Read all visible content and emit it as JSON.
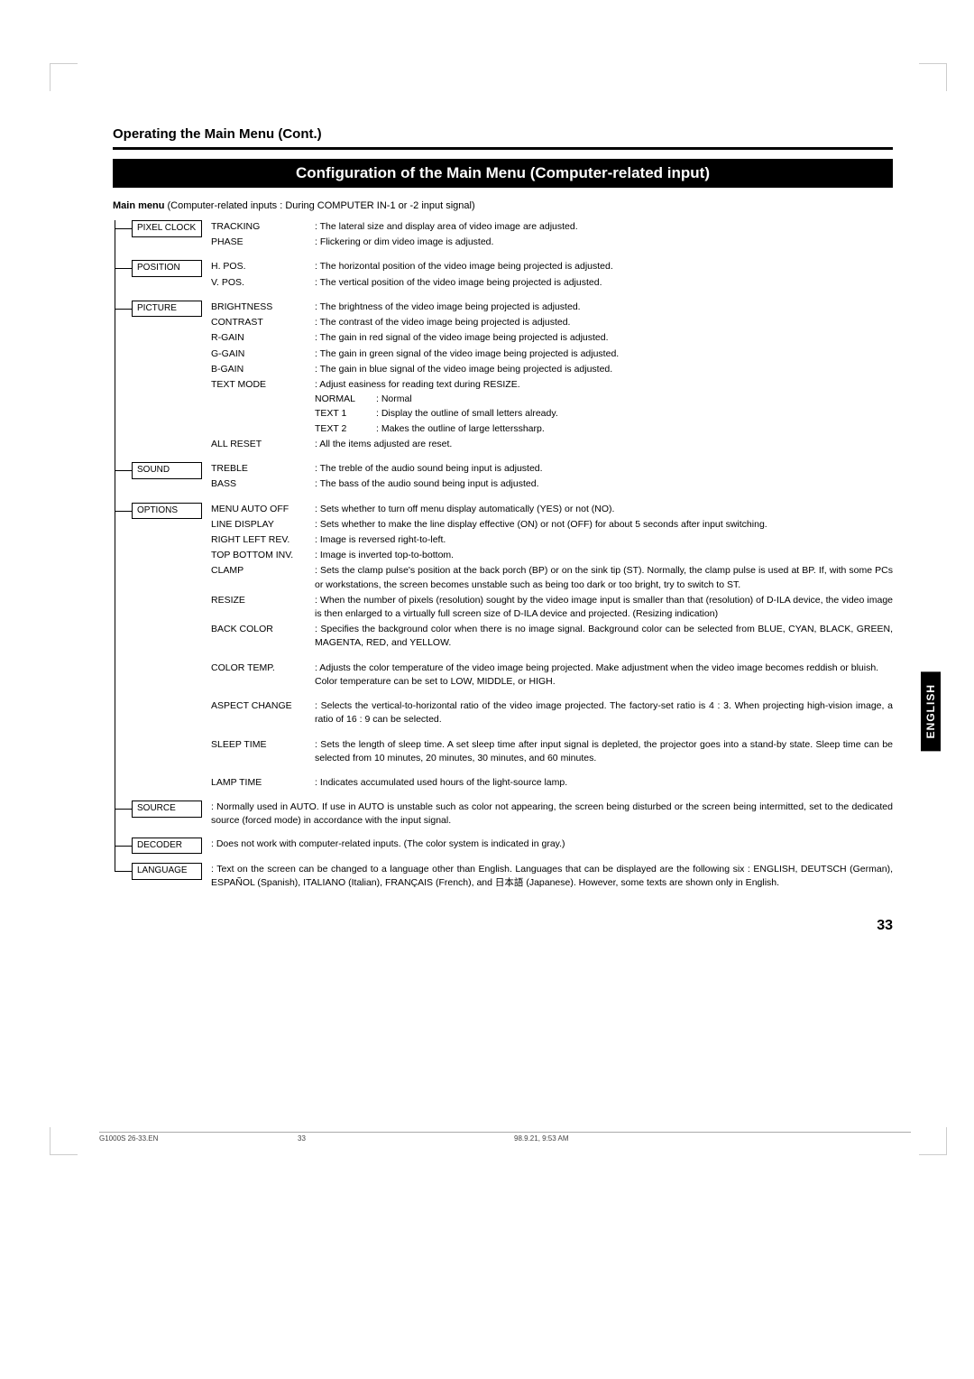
{
  "section_title": "Operating the Main Menu (Cont.)",
  "banner": "Configuration of the Main Menu (Computer-related input)",
  "intro_bold": "Main menu",
  "intro_rest": " (Computer-related inputs : During COMPUTER IN-1 or -2 input signal)",
  "side_tab": "ENGLISH",
  "page_number": "33",
  "footer": {
    "a": "G1000S 26-33.EN",
    "b": "33",
    "c": "98.9.21, 9:53 AM"
  },
  "nodes": [
    {
      "cat": "PIXEL CLOCK",
      "rows": [
        {
          "param": "TRACKING",
          "desc": ": The lateral size and display area of video image are adjusted."
        },
        {
          "param": "PHASE",
          "desc": ": Flickering or dim video image is adjusted."
        }
      ]
    },
    {
      "cat": "POSITION",
      "rows": [
        {
          "param": "H. POS.",
          "desc": ": The horizontal position of the video image being projected is adjusted."
        },
        {
          "param": "V. POS.",
          "desc": ": The vertical position of the video image being projected is adjusted."
        }
      ]
    },
    {
      "cat": "PICTURE",
      "rows": [
        {
          "param": "BRIGHTNESS",
          "desc": ": The brightness of the video image being projected is adjusted."
        },
        {
          "param": "CONTRAST",
          "desc": ": The contrast of the video image being projected is adjusted."
        },
        {
          "param": "R-GAIN",
          "desc": ": The gain in red signal of the video image being projected is adjusted."
        },
        {
          "param": "G-GAIN",
          "desc": ": The gain in green signal of the video image being projected is adjusted."
        },
        {
          "param": "B-GAIN",
          "desc": ": The gain in blue signal of the video image being projected is adjusted."
        },
        {
          "param": "TEXT MODE",
          "desc": ": Adjust easiness for reading text during RESIZE.",
          "subs": [
            {
              "k": "NORMAL",
              "v": ": Normal"
            },
            {
              "k": "TEXT 1",
              "v": ": Display the outline of small letters already."
            },
            {
              "k": "TEXT 2",
              "v": ": Makes the outline of large letterssharp."
            }
          ]
        },
        {
          "param": "ALL RESET",
          "desc": ": All the items adjusted are reset."
        }
      ]
    },
    {
      "cat": "SOUND",
      "rows": [
        {
          "param": "TREBLE",
          "desc": ": The treble of the audio sound being input is adjusted."
        },
        {
          "param": "BASS",
          "desc": ": The bass of the audio sound being input is adjusted."
        }
      ]
    },
    {
      "cat": "OPTIONS",
      "rows": [
        {
          "param": "MENU AUTO OFF",
          "desc": ": Sets whether to turn off menu display automatically (YES) or not (NO)."
        },
        {
          "param": "LINE DISPLAY",
          "desc": ": Sets whether to make the line display effective (ON) or not (OFF) for about 5 seconds after input switching."
        },
        {
          "param": "RIGHT LEFT REV.",
          "desc": ": Image is reversed right-to-left."
        },
        {
          "param": "TOP BOTTOM INV.",
          "desc": ": Image is inverted top-to-bottom."
        },
        {
          "param": "CLAMP",
          "desc": ": Sets the clamp pulse's position at the back porch (BP) or on the sink tip (ST). Normally, the clamp pulse is used at BP. If, with some PCs or workstations, the screen becomes unstable such as being too dark or too bright, try to switch to ST."
        },
        {
          "param": "RESIZE",
          "desc": ": When the number of pixels (resolution) sought by the video image input is smaller than that (resolution) of D-ILA device, the video image is then enlarged to a virtually full screen size of D-ILA device and projected. (Resizing indication)"
        },
        {
          "param": "BACK COLOR",
          "desc": ": Specifies the background color when there is no image signal. Background color can be selected from BLUE, CYAN, BLACK, GREEN, MAGENTA, RED, and YELLOW."
        },
        {
          "param": "COLOR TEMP.",
          "desc": ": Adjusts the color temperature of the video image being projected. Make adjustment when the video image becomes reddish or bluish.\nColor temperature can be set to LOW, MIDDLE, or HIGH.",
          "gap": true
        },
        {
          "param": "ASPECT CHANGE",
          "desc": ": Selects the vertical-to-horizontal ratio of the video image projected. The factory-set ratio is 4 : 3. When projecting high-vision image, a ratio of 16 : 9 can be selected.",
          "gap": true
        },
        {
          "param": "SLEEP TIME",
          "desc": ": Sets the length of sleep time. A set sleep time after input signal is depleted, the projector goes into a stand-by state. Sleep time can be selected from 10 minutes, 20 minutes, 30 minutes, and 60 minutes.",
          "gap": true
        },
        {
          "param": "LAMP TIME",
          "desc": ": Indicates accumulated used hours of the light-source lamp.",
          "gap": true
        }
      ]
    },
    {
      "cat": "SOURCE",
      "full": ": Normally used in AUTO. If use in AUTO is unstable such as color not appearing, the screen being disturbed or the screen being intermitted, set to the dedicated source (forced mode) in accordance with the input signal."
    },
    {
      "cat": "DECODER",
      "full": ": Does not work with computer-related inputs. (The color system is indicated in gray.)"
    },
    {
      "cat": "LANGUAGE",
      "full": ": Text on the screen can be changed to a language other than English. Languages that can be displayed are the following six : ENGLISH, DEUTSCH (German), ESPAÑOL (Spanish), ITALIANO (Italian), FRANÇAIS (French), and 日本語 (Japanese). However, some texts are shown only in English."
    }
  ]
}
